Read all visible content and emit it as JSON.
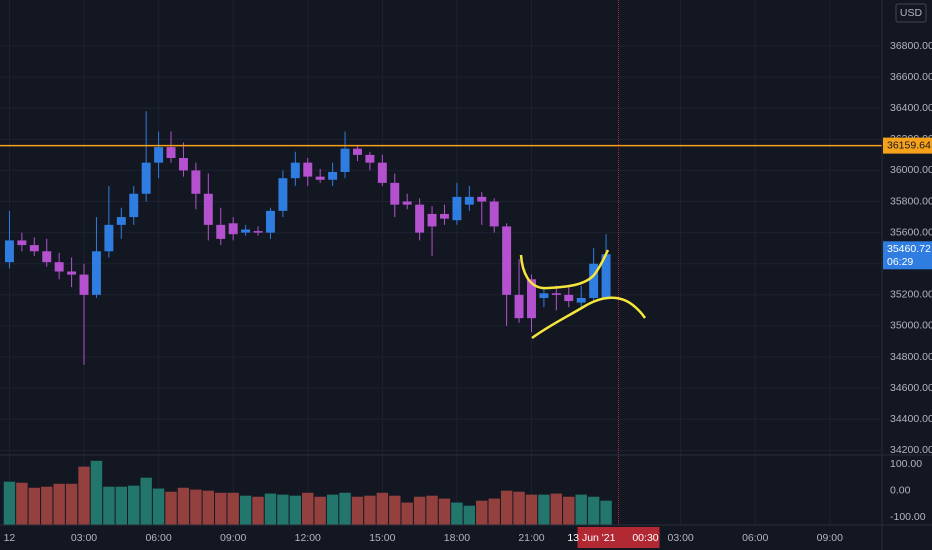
{
  "chart_data": {
    "type": "candlestick",
    "currency": "USD",
    "x": [
      0,
      0.5,
      1,
      1.5,
      2,
      2.5,
      3,
      3.5,
      4,
      4.5,
      5,
      5.5,
      6,
      6.5,
      7,
      7.5,
      8,
      8.5,
      9,
      9.5,
      10,
      10.5,
      11,
      11.5,
      12,
      12.5,
      13,
      13.5,
      14,
      14.5,
      15,
      15.5,
      16,
      16.5,
      17,
      17.5,
      18,
      18.5,
      19,
      19.5,
      20,
      20.5,
      21,
      21.5,
      22,
      22.5,
      23,
      23.5,
      24
    ],
    "open": [
      35410,
      35550,
      35520,
      35480,
      35410,
      35350,
      35330,
      35200,
      35480,
      35650,
      35700,
      35850,
      36050,
      36150,
      36080,
      36000,
      35850,
      35650,
      35660,
      35600,
      35610,
      35600,
      35740,
      35950,
      36050,
      35960,
      35940,
      35990,
      36140,
      36100,
      36050,
      35920,
      35800,
      35780,
      35720,
      35720,
      35680,
      35780,
      35830,
      35800,
      35640,
      35200,
      35300,
      35180,
      35210,
      35200,
      35150,
      35180,
      35180
    ],
    "high": [
      35740,
      35600,
      35570,
      35560,
      35470,
      35440,
      35400,
      35700,
      35900,
      35760,
      35900,
      36380,
      36250,
      36250,
      36180,
      36050,
      35980,
      35760,
      35700,
      35650,
      35640,
      35760,
      36000,
      36120,
      36080,
      36010,
      36050,
      36250,
      36160,
      36120,
      36100,
      35980,
      35850,
      35820,
      35770,
      35780,
      35920,
      35900,
      35860,
      35820,
      35660,
      35430,
      35330,
      35250,
      35260,
      35260,
      35260,
      35500,
      35590
    ],
    "low": [
      35370,
      35480,
      35450,
      35380,
      35300,
      35250,
      34750,
      35180,
      35440,
      35560,
      35650,
      35800,
      35950,
      36050,
      35960,
      35750,
      35550,
      35520,
      35550,
      35580,
      35580,
      35560,
      35700,
      35900,
      35900,
      35920,
      35900,
      35950,
      36060,
      36000,
      35900,
      35700,
      35750,
      35550,
      35450,
      35650,
      35650,
      35740,
      35650,
      35600,
      35000,
      35020,
      34960,
      35120,
      35100,
      35120,
      35120,
      35150,
      35170
    ],
    "close": [
      35550,
      35520,
      35480,
      35410,
      35350,
      35330,
      35200,
      35480,
      35650,
      35700,
      35850,
      36050,
      36150,
      36080,
      36000,
      35850,
      35650,
      35560,
      35590,
      35620,
      35600,
      35740,
      35950,
      36050,
      35960,
      35940,
      35990,
      36140,
      36100,
      36050,
      35920,
      35780,
      35780,
      35600,
      35640,
      35690,
      35830,
      35830,
      35800,
      35640,
      35200,
      35050,
      35050,
      35210,
      35200,
      35160,
      35180,
      35400,
      35460.72
    ],
    "volume": [
      34,
      30,
      11,
      15,
      26,
      26,
      91,
      113,
      15,
      15,
      19,
      49,
      8,
      -4,
      11,
      4,
      0,
      -8,
      -8,
      -19,
      -23,
      -11,
      -15,
      -19,
      -8,
      -23,
      -15,
      -8,
      -23,
      -19,
      -8,
      -19,
      -45,
      -23,
      -19,
      -30,
      -45,
      -57,
      -38,
      -30,
      0,
      -4,
      -15,
      -15,
      -11,
      -23,
      -15,
      -23,
      -38
    ],
    "up_color": "#2f7de1",
    "down_color": "#b451cf",
    "volume_up_color": "#22766b",
    "volume_down_color": "#93403f",
    "xlim": [
      -0.38,
      35.1
    ],
    "xticks": [
      {
        "value": 0,
        "label": "12"
      },
      {
        "value": 3,
        "label": "03:00"
      },
      {
        "value": 6,
        "label": "06:00"
      },
      {
        "value": 9,
        "label": "09:00"
      },
      {
        "value": 12,
        "label": "12:00"
      },
      {
        "value": 15,
        "label": "15:00"
      },
      {
        "value": 18,
        "label": "18:00"
      },
      {
        "value": 21,
        "label": "21:00"
      },
      {
        "value": 27,
        "label": "03:00"
      },
      {
        "value": 30,
        "label": "06:00"
      },
      {
        "value": 33,
        "label": "09:00"
      }
    ],
    "ylim": [
      34170,
      37096
    ],
    "yticks": [
      {
        "value": 34200,
        "label": "34200.00"
      },
      {
        "value": 34400,
        "label": "34400.00"
      },
      {
        "value": 34600,
        "label": "34600.00"
      },
      {
        "value": 34800,
        "label": "34800.00"
      },
      {
        "value": 35000,
        "label": "35000.00"
      },
      {
        "value": 35200,
        "label": "35200.00"
      },
      {
        "value": 35400,
        "label": "35400.00"
      },
      {
        "value": 35600,
        "label": "35600.00"
      },
      {
        "value": 35800,
        "label": "35800.00"
      },
      {
        "value": 36000,
        "label": "36000.00"
      },
      {
        "value": 36200,
        "label": "36200.00"
      },
      {
        "value": 36400,
        "label": "36400.00"
      },
      {
        "value": 36600,
        "label": "36600.00"
      },
      {
        "value": 36800,
        "label": "36800.00"
      }
    ],
    "volume_ylim": [
      -130,
      135
    ],
    "volume_yticks": [
      {
        "value": 100,
        "label": "100.00"
      },
      {
        "value": 0,
        "label": "0.00"
      },
      {
        "value": -100,
        "label": "-100.00"
      }
    ],
    "price_line": {
      "value": 36159.64,
      "color": "#f7a21b"
    },
    "countdown": "06:29",
    "crosshair": {
      "x": 24.5,
      "date": "13 Jun '21",
      "time": "00:30",
      "color": "#b22833"
    },
    "grid": true
  }
}
